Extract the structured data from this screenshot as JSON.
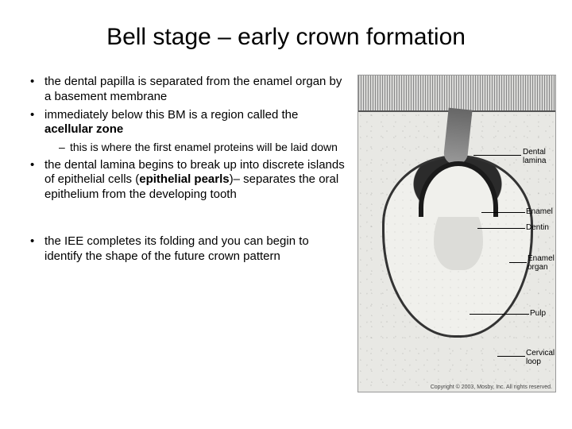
{
  "title": "Bell stage – early crown formation",
  "bullets": {
    "b1": "the dental papilla is separated from the enamel organ by a basement membrane",
    "b2_pre": "immediately below this BM is a region called the ",
    "b2_bold": "acellular zone",
    "b2_sub": "this is where the first enamel proteins will be laid down",
    "b3_pre": "the dental lamina begins to break up into discrete islands of epithelial cells (",
    "b3_bold": "epithelial pearls",
    "b3_post": ")– separates the oral epithelium from the developing tooth",
    "b4": "the IEE completes its folding and you can begin to identify the shape of the future crown pattern"
  },
  "image": {
    "labels": {
      "dental_lamina": "Dental\nlamina",
      "enamel": "Enamel",
      "dentin": "Dentin",
      "enamel_organ": "Enamel\norgan",
      "pulp": "Pulp",
      "cervical_loop": "Cervical\nloop"
    },
    "copyright": "Copyright © 2003, Mosby, Inc. All rights reserved.",
    "colors": {
      "background": "#f5f5f3",
      "tissue": "#e8e8e4",
      "outline": "#333333",
      "dark": "#1a1a1a"
    }
  }
}
